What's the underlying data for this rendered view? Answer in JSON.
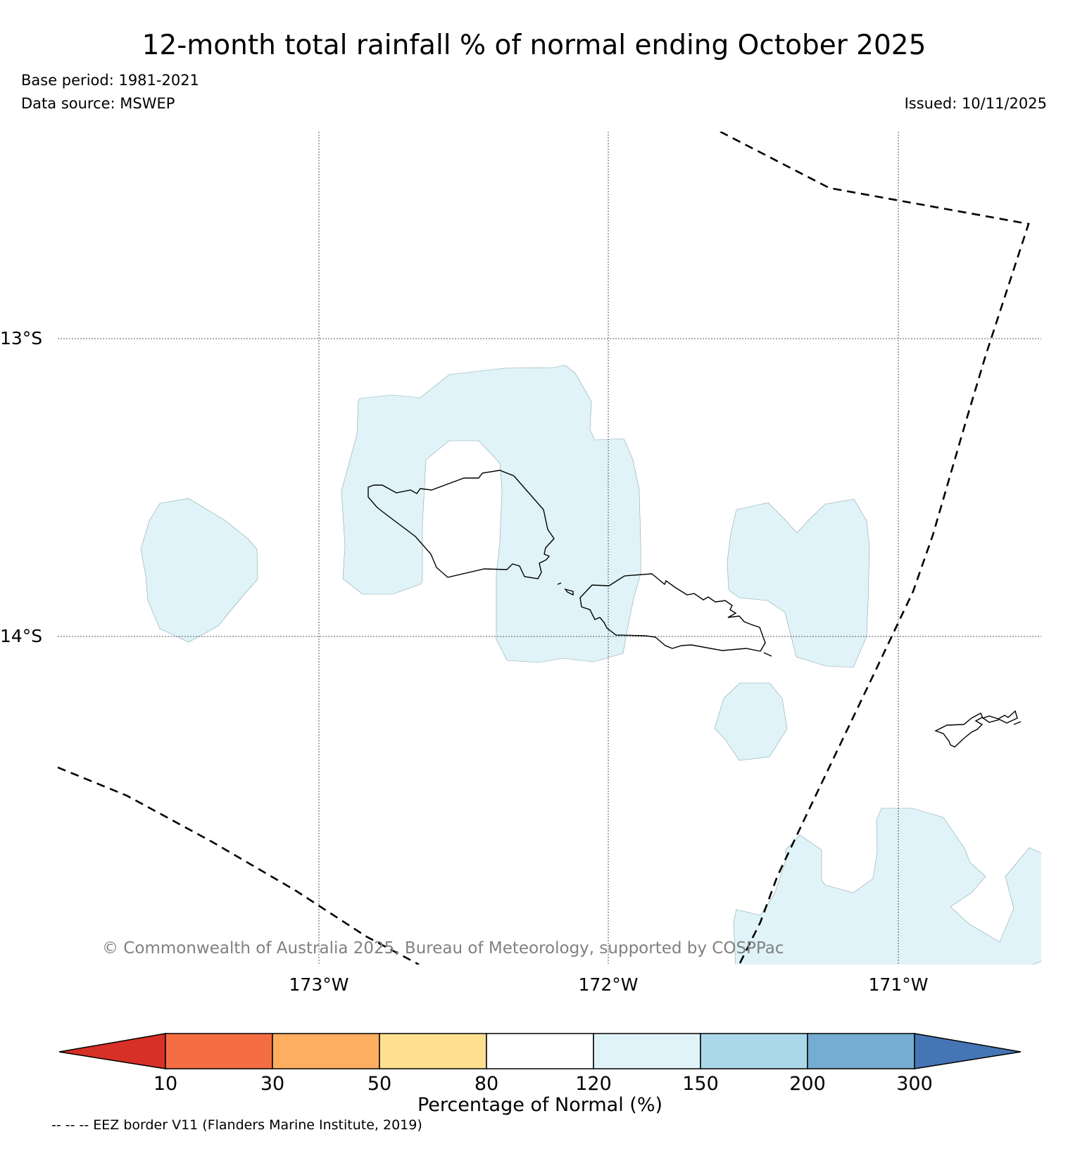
{
  "header": {
    "title": "12-month total rainfall % of normal ending October 2025",
    "base_period": "Base period: 1981-2021",
    "data_source": "Data source: MSWEP",
    "issued": "Issued: 10/11/2025"
  },
  "map": {
    "region": "Samoa",
    "lon_labels": [
      "173°W",
      "172°W",
      "171°W"
    ],
    "lat_labels": [
      "13°S",
      "14°S"
    ],
    "copyright": "© Commonwealth of Australia 2025, Bureau of Meteorology, supported by COSPPac",
    "rainfall_category_shown": "120-150"
  },
  "legend": {
    "title": "Percentage of Normal (%)",
    "ticks": [
      "10",
      "30",
      "50",
      "80",
      "120",
      "150",
      "200",
      "300"
    ],
    "colors": {
      "lt10": "#d73027",
      "10-30": "#f46d43",
      "30-50": "#fdae61",
      "50-80": "#fee090",
      "80-120": "#ffffff",
      "120-150": "#e0f3f8",
      "150-200": "#abd9e9",
      "200-300": "#74add1",
      "gt300": "#4575b4"
    },
    "eez_note": "-- -- -- EEZ border V11 (Flanders Marine Institute, 2019)"
  }
}
